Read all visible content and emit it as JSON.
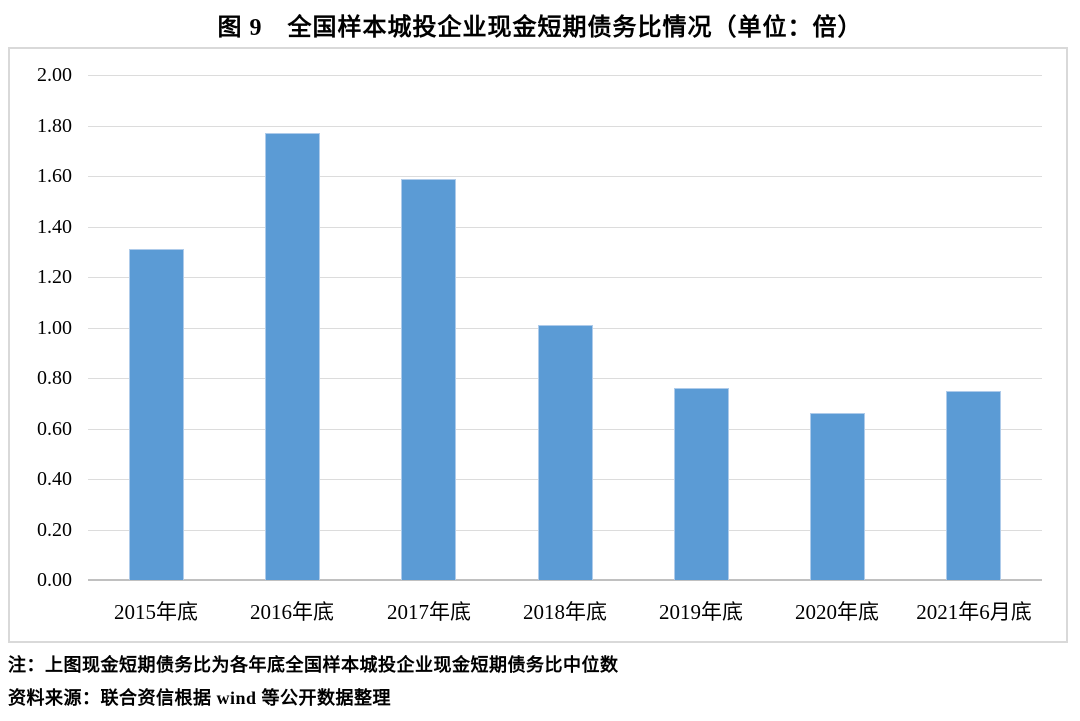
{
  "chart_data": {
    "type": "bar",
    "title": "图 9　全国样本城投企业现金短期债务比情况（单位：倍）",
    "categories": [
      "2015年底",
      "2016年底",
      "2017年底",
      "2018年底",
      "2019年底",
      "2020年底",
      "2021年6月底"
    ],
    "values": [
      1.31,
      1.77,
      1.59,
      1.01,
      0.76,
      0.66,
      0.75
    ],
    "unit": "倍",
    "xlabel": "",
    "ylabel": "",
    "ylim": [
      0,
      2
    ],
    "ytick_step": 0.2,
    "ytick_labels": [
      "0.00",
      "0.20",
      "0.40",
      "0.60",
      "0.80",
      "1.00",
      "1.20",
      "1.40",
      "1.60",
      "1.80",
      "2.00"
    ],
    "grid": true,
    "legend": "none",
    "colors": {
      "bar": "#5B9BD5",
      "bar_border": "#AECBEA",
      "gridline": "#DCDCDC",
      "axis_line": "#C0C0C0",
      "frame_border": "#D9D9D9",
      "text": "#000000"
    }
  },
  "notes": {
    "note": "注：上图现金短期债务比为各年底全国样本城投企业现金短期债务比中位数",
    "source": "资料来源：联合资信根据 wind 等公开数据整理"
  }
}
